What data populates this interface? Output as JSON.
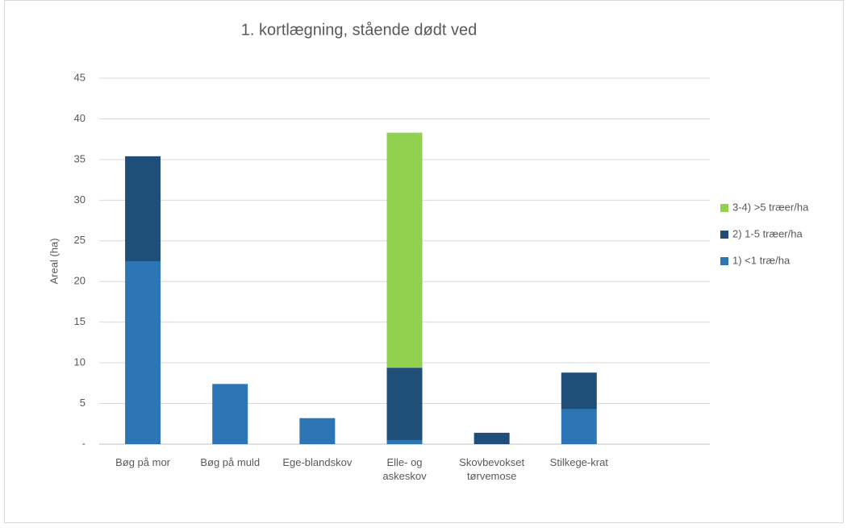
{
  "chart_data": {
    "type": "stacked_bar",
    "title": "1. kortlægning, stående dødt ved",
    "y_label": "Areal (ha)",
    "categories": [
      "Bøg på mor",
      "Bøg på muld",
      "Ege-blandskov",
      "Elle- og askeskov",
      "Skovbevokset tørvemose",
      "Stilkege-krat",
      null
    ],
    "series": [
      {
        "name": "1) <1 træ/ha",
        "color": "#2e75b6",
        "values": [
          22.5,
          7.4,
          3.2,
          0.5,
          0,
          4.3,
          null
        ]
      },
      {
        "name": "2) 1-5 træer/ha",
        "color": "#1f4e79",
        "values": [
          12.9,
          0,
          0,
          8.9,
          1.4,
          4.5,
          null
        ]
      },
      {
        "name": "3-4) >5 træer/ha",
        "color": "#92d050",
        "values": [
          0,
          0,
          0,
          28.9,
          0,
          0,
          null
        ]
      }
    ],
    "ylim": [
      0,
      45
    ],
    "yticks": [
      {
        "value": 0,
        "label": "-"
      },
      5,
      10,
      15,
      20,
      25,
      30,
      35,
      40,
      45
    ],
    "grid": true,
    "legend": "right"
  }
}
